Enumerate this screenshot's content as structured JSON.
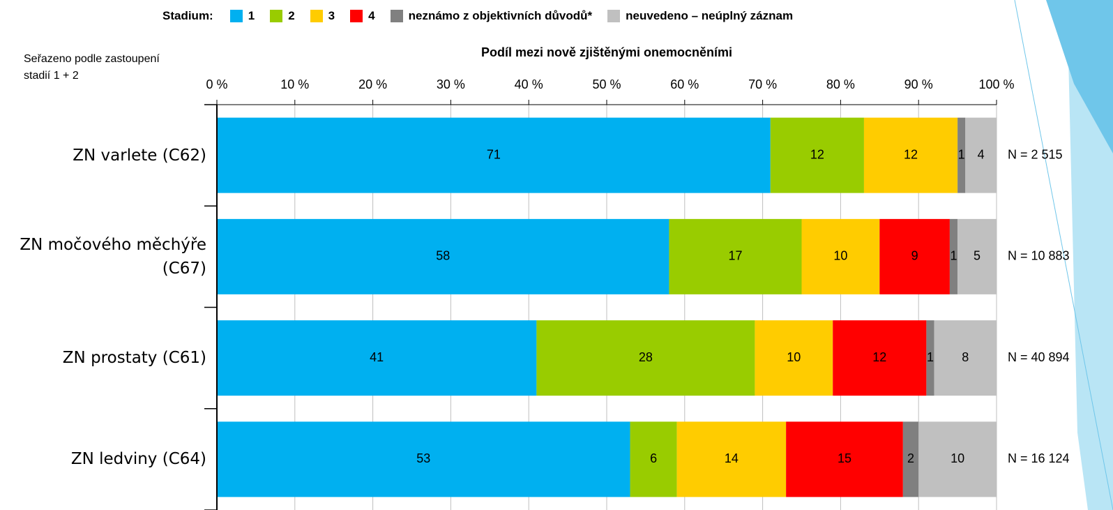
{
  "chart_data": {
    "type": "stacked_barh",
    "legend_title": "Stadium:",
    "note": "Seřazeno podle zastoupení stadií 1 + 2",
    "xlabel": "Podíl mezi nově zjištěnými onemocněními",
    "categories": [
      "ZN varlete (C62)",
      "ZN močového měchýře (C67)",
      "ZN prostaty (C61)",
      "ZN ledviny (C64)"
    ],
    "n_labels": [
      "N = 2 515",
      "N = 10 883",
      "N = 40 894",
      "N = 16 124"
    ],
    "series": [
      {
        "name": "1",
        "color": "#00b0f0",
        "values": [
          71,
          58,
          41,
          53
        ]
      },
      {
        "name": "2",
        "color": "#99cc00",
        "values": [
          12,
          17,
          28,
          6
        ]
      },
      {
        "name": "3",
        "color": "#ffcc00",
        "values": [
          12,
          10,
          10,
          14
        ]
      },
      {
        "name": "4",
        "color": "#ff0000",
        "values": [
          0,
          9,
          12,
          15
        ]
      },
      {
        "name": "neznámo z objektivních důvodů*",
        "color": "#808080",
        "values": [
          1,
          1,
          1,
          2
        ]
      },
      {
        "name": "neuvedeno – neúplný záznam",
        "color": "#c0c0c0",
        "values": [
          4,
          5,
          8,
          10
        ]
      }
    ],
    "xlim": [
      0,
      100
    ],
    "xticks": [
      {
        "value": 0,
        "label": "0 %"
      },
      {
        "value": 10,
        "label": "10 %"
      },
      {
        "value": 20,
        "label": "20 %"
      },
      {
        "value": 30,
        "label": "30 %"
      },
      {
        "value": 40,
        "label": "40 %"
      },
      {
        "value": 50,
        "label": "50 %"
      },
      {
        "value": 60,
        "label": "60 %"
      },
      {
        "value": 70,
        "label": "70 %"
      },
      {
        "value": 80,
        "label": "80 %"
      },
      {
        "value": 90,
        "label": "90 %"
      },
      {
        "value": 100,
        "label": "100 %"
      }
    ],
    "grid": true
  }
}
